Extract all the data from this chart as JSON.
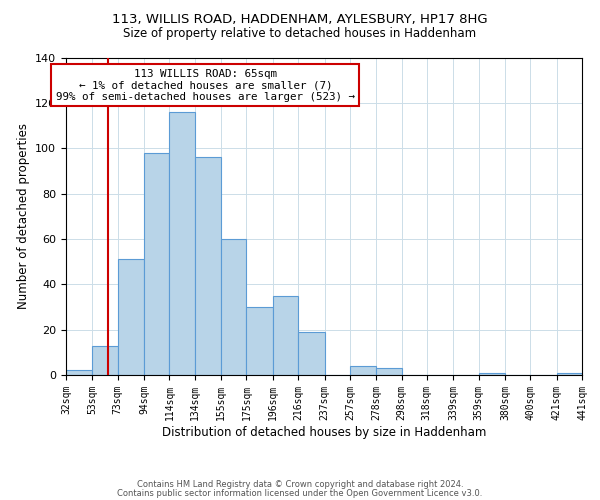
{
  "title1": "113, WILLIS ROAD, HADDENHAM, AYLESBURY, HP17 8HG",
  "title2": "Size of property relative to detached houses in Haddenham",
  "xlabel": "Distribution of detached houses by size in Haddenham",
  "ylabel": "Number of detached properties",
  "bar_color": "#b8d4e8",
  "bar_edge_color": "#5b9bd5",
  "annotation_box_color": "#ffffff",
  "annotation_box_edge_color": "#cc0000",
  "red_line_color": "#cc0000",
  "property_line_x": 65,
  "annotation_line1": "113 WILLIS ROAD: 65sqm",
  "annotation_line2": "← 1% of detached houses are smaller (7)",
  "annotation_line3": "99% of semi-detached houses are larger (523) →",
  "bins": [
    32,
    53,
    73,
    94,
    114,
    134,
    155,
    175,
    196,
    216,
    237,
    257,
    278,
    298,
    318,
    339,
    359,
    380,
    400,
    421,
    441
  ],
  "counts": [
    2,
    13,
    51,
    98,
    116,
    96,
    60,
    30,
    35,
    19,
    0,
    4,
    3,
    0,
    0,
    0,
    1,
    0,
    0,
    1
  ],
  "ylim": [
    0,
    140
  ],
  "yticks": [
    0,
    20,
    40,
    60,
    80,
    100,
    120,
    140
  ],
  "footer1": "Contains HM Land Registry data © Crown copyright and database right 2024.",
  "footer2": "Contains public sector information licensed under the Open Government Licence v3.0."
}
